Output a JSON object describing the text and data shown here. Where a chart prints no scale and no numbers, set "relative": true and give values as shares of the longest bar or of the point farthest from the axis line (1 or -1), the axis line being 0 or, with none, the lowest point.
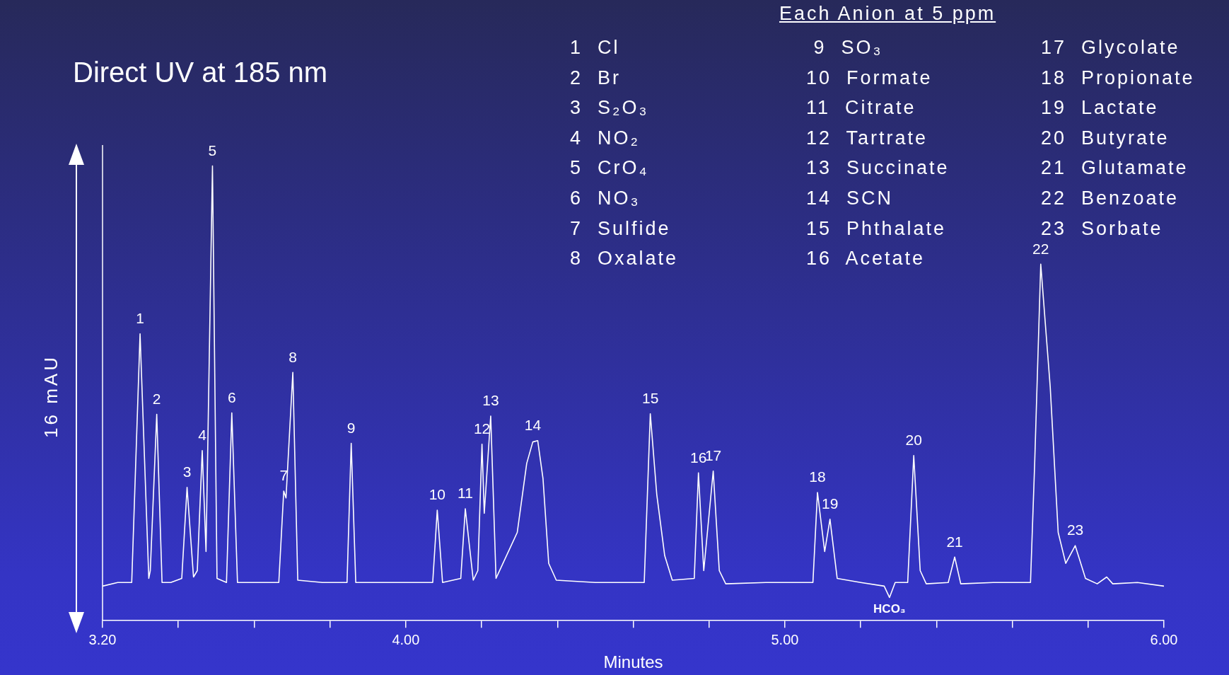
{
  "chart_data": {
    "type": "line",
    "relative": true,
    "title": "Direct UV at 185 nm",
    "xlabel": "Minutes",
    "ylabel": "16 mAU",
    "color": "#ffffff",
    "marker": "none",
    "grid": false,
    "legend": false,
    "xlim": [
      3.2,
      6.0
    ],
    "xticks": [
      {
        "value": 3.2,
        "label": "3.20"
      },
      {
        "value": 3.4,
        "label": null
      },
      {
        "value": 3.6,
        "label": null
      },
      {
        "value": 3.8,
        "label": null
      },
      {
        "value": 4.0,
        "label": "4.00"
      },
      {
        "value": 4.2,
        "label": null
      },
      {
        "value": 4.4,
        "label": null
      },
      {
        "value": 4.6,
        "label": null
      },
      {
        "value": 4.8,
        "label": null
      },
      {
        "value": 5.0,
        "label": "5.00"
      },
      {
        "value": 5.2,
        "label": null
      },
      {
        "value": 5.4,
        "label": null
      },
      {
        "value": 5.6,
        "label": null
      },
      {
        "value": 5.8,
        "label": null
      },
      {
        "value": 6.0,
        "label": "6.00"
      }
    ],
    "x": [
      3.2,
      3.24,
      3.277,
      3.299,
      3.322,
      3.326,
      3.343,
      3.357,
      3.38,
      3.409,
      3.423,
      3.44,
      3.45,
      3.463,
      3.473,
      3.49,
      3.502,
      3.527,
      3.541,
      3.556,
      3.6,
      3.665,
      3.678,
      3.684,
      3.702,
      3.715,
      3.78,
      3.845,
      3.856,
      3.868,
      3.95,
      4.071,
      4.083,
      4.097,
      4.145,
      4.157,
      4.178,
      4.19,
      4.201,
      4.207,
      4.224,
      4.238,
      4.294,
      4.319,
      4.335,
      4.348,
      4.362,
      4.377,
      4.397,
      4.5,
      4.629,
      4.645,
      4.662,
      4.683,
      4.703,
      4.761,
      4.772,
      4.786,
      4.811,
      4.827,
      4.844,
      4.95,
      5.074,
      5.086,
      5.105,
      5.119,
      5.138,
      5.2,
      5.262,
      5.276,
      5.291,
      5.324,
      5.34,
      5.357,
      5.373,
      5.431,
      5.448,
      5.464,
      5.55,
      5.648,
      5.659,
      5.675,
      5.7,
      5.721,
      5.741,
      5.766,
      5.793,
      5.824,
      5.849,
      5.865,
      5.93,
      6.0
    ],
    "values": [
      0.076,
      0.084,
      0.084,
      0.631,
      0.093,
      0.11,
      0.454,
      0.084,
      0.084,
      0.093,
      0.293,
      0.096,
      0.11,
      0.374,
      0.152,
      1.0,
      0.093,
      0.084,
      0.457,
      0.084,
      0.084,
      0.084,
      0.285,
      0.27,
      0.546,
      0.089,
      0.084,
      0.084,
      0.39,
      0.084,
      0.084,
      0.084,
      0.243,
      0.084,
      0.093,
      0.246,
      0.089,
      0.11,
      0.388,
      0.236,
      0.45,
      0.093,
      0.194,
      0.346,
      0.393,
      0.396,
      0.312,
      0.126,
      0.089,
      0.084,
      0.084,
      0.455,
      0.278,
      0.143,
      0.089,
      0.093,
      0.325,
      0.11,
      0.329,
      0.11,
      0.081,
      0.084,
      0.084,
      0.282,
      0.152,
      0.223,
      0.093,
      0.084,
      0.076,
      0.051,
      0.084,
      0.084,
      0.363,
      0.11,
      0.081,
      0.084,
      0.14,
      0.081,
      0.084,
      0.084,
      0.346,
      0.784,
      0.514,
      0.194,
      0.126,
      0.165,
      0.093,
      0.081,
      0.096,
      0.081,
      0.084,
      0.076
    ],
    "annotations": [
      "Each Anion at 5 ppm",
      "1  Cl",
      "2  Br",
      "3  S₂O₃",
      "4  NO₂",
      "5  CrO₄",
      "6  NO₃",
      "7  Sulfide",
      "8  Oxalate",
      " 9  SO₃",
      "10  Formate",
      "11  Citrate",
      "12  Tartrate",
      "13  Succinate",
      "14  SCN",
      "15  Phthalate",
      "16  Acetate",
      "17  Glycolate",
      "18  Propionate",
      "19  Lactate",
      "20  Butyrate",
      "21  Glutamate",
      "22  Benzoate",
      "23  Sorbate",
      {
        "text": "1",
        "x": 3.299,
        "y": 0.631
      },
      {
        "text": "2",
        "x": 3.343,
        "y": 0.454
      },
      {
        "text": "3",
        "x": 3.423,
        "y": 0.293
      },
      {
        "text": "4",
        "x": 3.463,
        "y": 0.374
      },
      {
        "text": "5",
        "x": 3.49,
        "y": 1.0
      },
      {
        "text": "6",
        "x": 3.541,
        "y": 0.457
      },
      {
        "text": "7",
        "x": 3.678,
        "y": 0.285
      },
      {
        "text": "8",
        "x": 3.702,
        "y": 0.546
      },
      {
        "text": "9",
        "x": 3.856,
        "y": 0.39
      },
      {
        "text": "10",
        "x": 4.083,
        "y": 0.243
      },
      {
        "text": "11",
        "x": 4.157,
        "y": 0.246
      },
      {
        "text": "12",
        "x": 4.201,
        "y": 0.388
      },
      {
        "text": "13",
        "x": 4.224,
        "y": 0.45
      },
      {
        "text": "14",
        "x": 4.335,
        "y": 0.396
      },
      {
        "text": "15",
        "x": 4.645,
        "y": 0.455
      },
      {
        "text": "16",
        "x": 4.772,
        "y": 0.325
      },
      {
        "text": "17",
        "x": 4.811,
        "y": 0.329
      },
      {
        "text": "18",
        "x": 5.086,
        "y": 0.282
      },
      {
        "text": "19",
        "x": 5.119,
        "y": 0.223
      },
      {
        "text": "HCO₃",
        "x": 5.276,
        "y": 0.051
      },
      {
        "text": "20",
        "x": 5.34,
        "y": 0.363
      },
      {
        "text": "21",
        "x": 5.448,
        "y": 0.14
      },
      {
        "text": "22",
        "x": 5.675,
        "y": 0.784
      },
      {
        "text": "23",
        "x": 5.766,
        "y": 0.165
      }
    ]
  }
}
